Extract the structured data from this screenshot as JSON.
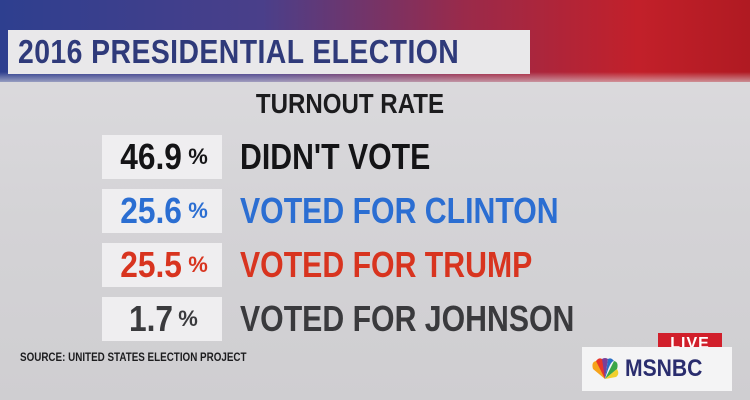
{
  "broadcast": {
    "title": "2016 PRESIDENTIAL ELECTION",
    "subtitle": "TURNOUT RATE",
    "source": "SOURCE: UNITED STATES ELECTION PROJECT",
    "live_label": "LIVE",
    "network_logo_text": "MSNBC"
  },
  "rows": [
    {
      "value": "46.9",
      "unit": "%",
      "label": "DIDN'T VOTE",
      "color": "#141416"
    },
    {
      "value": "25.6",
      "unit": "%",
      "label": "VOTED FOR CLINTON",
      "color": "#2b6ed2"
    },
    {
      "value": "25.5",
      "unit": "%",
      "label": "VOTED FOR TRUMP",
      "color": "#d8341f"
    },
    {
      "value": "1.7",
      "unit": "%",
      "label": "VOTED FOR JOHNSON",
      "color": "#3a3a3d"
    }
  ],
  "colors": {
    "title_text": "#2f3a7a",
    "live_red": "#d11f2b",
    "logo_navy": "#2a2d6e"
  },
  "icons": {
    "logo": "nbc-peacock-icon"
  }
}
